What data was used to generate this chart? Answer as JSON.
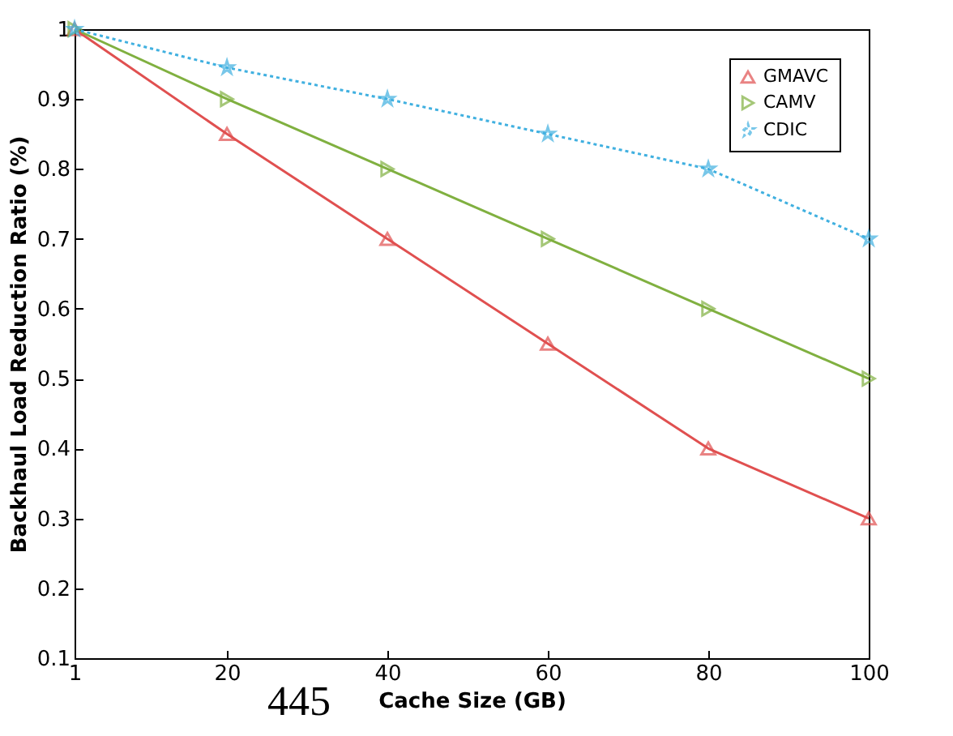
{
  "chart_data": {
    "type": "line",
    "xlabel": "Cache Size (GB)",
    "ylabel": "Backhaul Load Reduction  Ratio (%)",
    "x": [
      1,
      20,
      40,
      60,
      80,
      100
    ],
    "series": [
      {
        "name": "GMAVC",
        "color": "#e05050",
        "marker": "triangle",
        "line_style": "solid",
        "values": [
          1,
          0.85,
          0.7,
          0.55,
          0.4,
          0.3
        ]
      },
      {
        "name": "CAMV",
        "color": "#80b040",
        "marker": "triangle-right",
        "line_style": "solid",
        "values": [
          1,
          0.9,
          0.8,
          0.7,
          0.6,
          0.5
        ]
      },
      {
        "name": "CDIC",
        "color": "#40b0e0",
        "marker": "star",
        "line_style": "dotted",
        "values": [
          1,
          0.945,
          0.9,
          0.85,
          0.8,
          0.7
        ]
      }
    ],
    "xlim": [
      1,
      100
    ],
    "xticks": [
      1,
      20,
      40,
      60,
      80,
      100
    ],
    "ylim": [
      0.1,
      1
    ],
    "yticks": [
      0.1,
      0.2,
      0.3,
      0.4,
      0.5,
      0.6,
      0.7,
      0.8,
      0.9,
      {
        "value": 1,
        "label": "1"
      }
    ],
    "grid": false,
    "legend": "top right",
    "annotations": [
      "445"
    ]
  }
}
